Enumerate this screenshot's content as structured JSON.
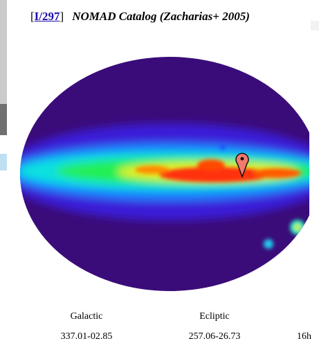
{
  "header": {
    "prefix": "[",
    "catalog_link": "I/297",
    "suffix": "]",
    "title": "NOMAD Catalog (Zacharias+ 2005)"
  },
  "coordinates": [
    {
      "label": "Galactic",
      "value": "337.01-02.85"
    },
    {
      "label": "Ecliptic",
      "value": "257.06-26.73"
    },
    {
      "value": "16h"
    }
  ]
}
